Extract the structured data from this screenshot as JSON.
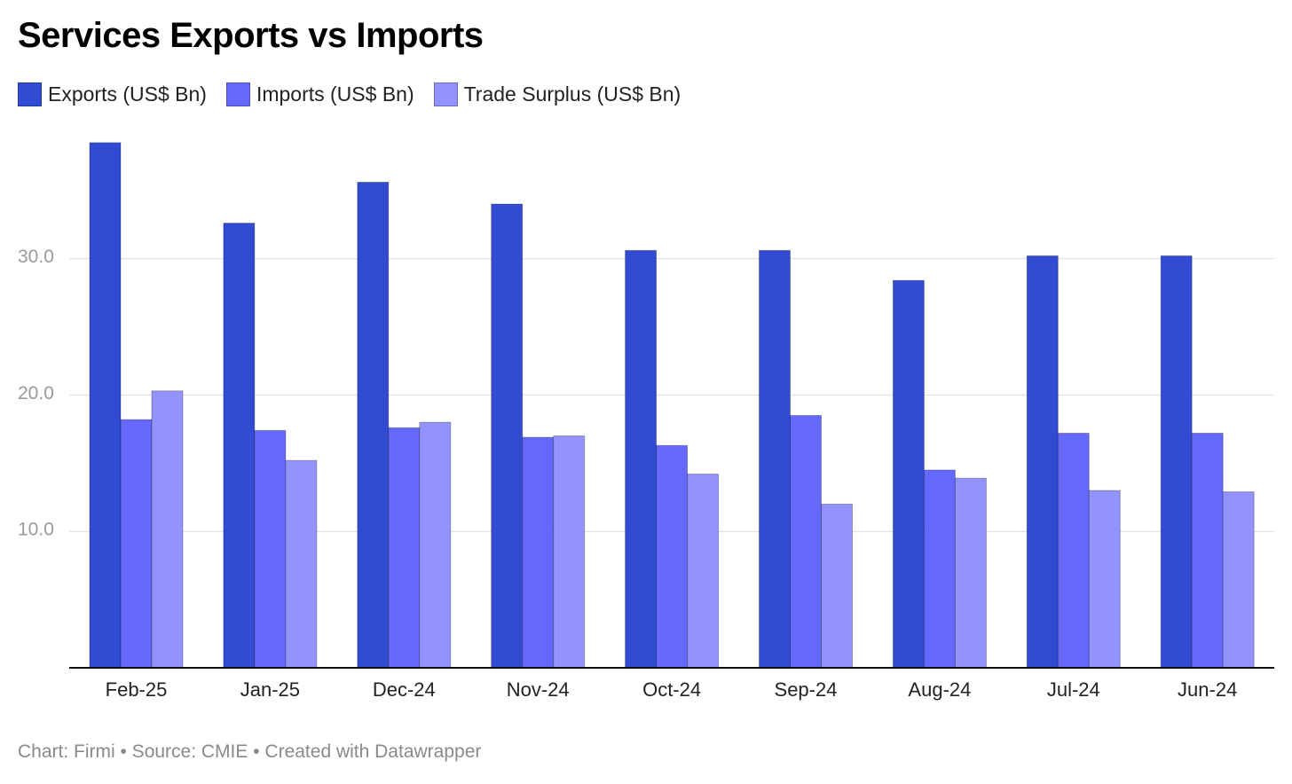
{
  "chart_data": {
    "type": "bar",
    "title": "Services Exports vs Imports",
    "categories": [
      "Feb-25",
      "Jan-25",
      "Dec-24",
      "Nov-24",
      "Oct-24",
      "Sep-24",
      "Aug-24",
      "Jul-24",
      "Jun-24"
    ],
    "series": [
      {
        "name": "Exports (US$ Bn)",
        "color": "#314bd3",
        "values": [
          38.5,
          32.6,
          35.6,
          34.0,
          30.6,
          30.6,
          28.4,
          30.2,
          30.2
        ]
      },
      {
        "name": "Imports (US$ Bn)",
        "color": "#6569fb",
        "values": [
          18.2,
          17.4,
          17.6,
          16.9,
          16.3,
          18.5,
          14.5,
          17.2,
          17.2
        ]
      },
      {
        "name": "Trade Surplus (US$ Bn)",
        "color": "#9393fd",
        "values": [
          20.3,
          15.2,
          18.0,
          17.0,
          14.2,
          12.0,
          13.9,
          13.0,
          12.9
        ]
      }
    ],
    "yticks": [
      "10.0",
      "20.0",
      "30.0"
    ],
    "ylim": [
      0,
      40
    ],
    "xlabel": "",
    "ylabel": "",
    "grid": true,
    "legend_position": "top-left"
  },
  "footer": "Chart: Firmi • Source: CMIE • Created with Datawrapper"
}
